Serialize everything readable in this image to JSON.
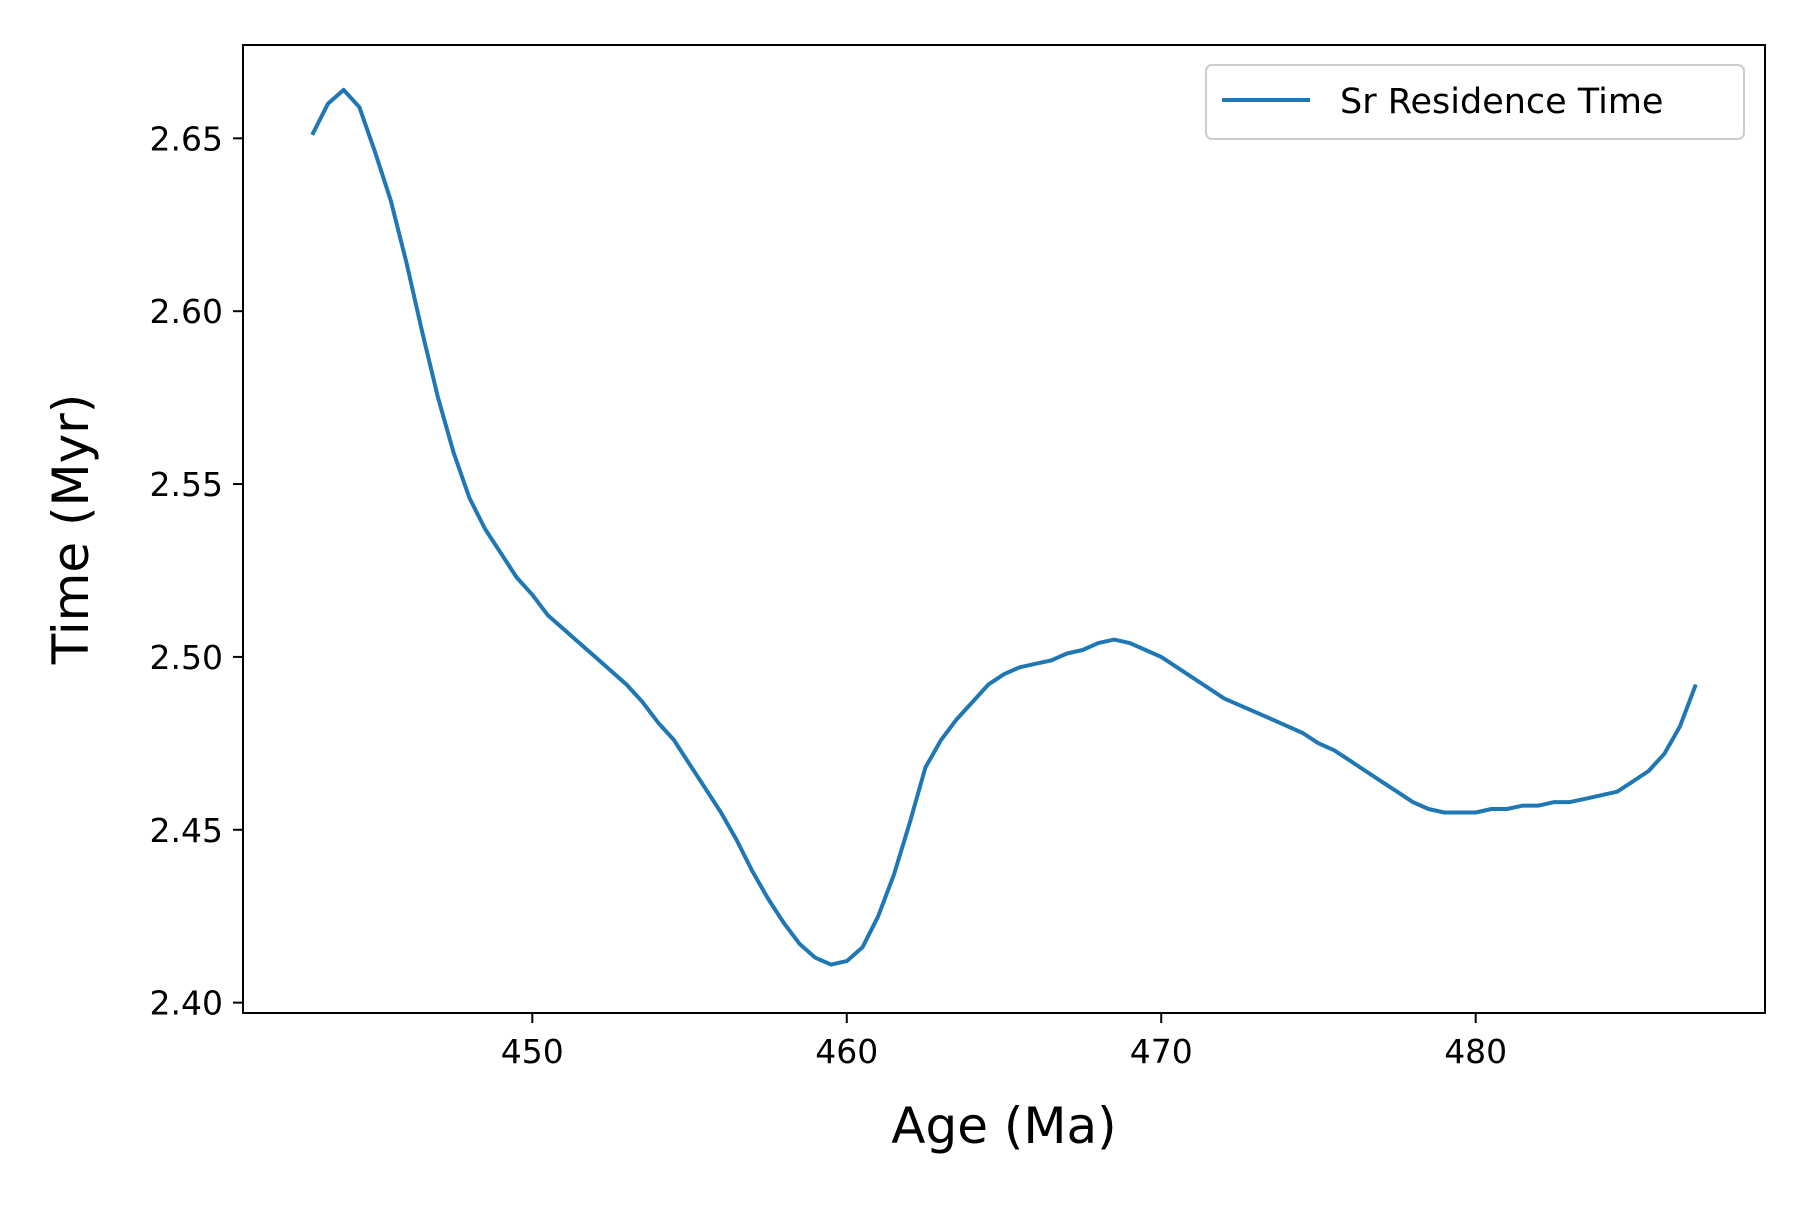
{
  "chart_data": {
    "type": "line",
    "title": "",
    "xlabel": "Age (Ma)",
    "ylabel": "Time (Myr)",
    "xlim": [
      440.8,
      489.2
    ],
    "ylim": [
      2.397,
      2.677
    ],
    "xticks": [
      450,
      460,
      470,
      480
    ],
    "xtick_labels": [
      "450",
      "460",
      "470",
      "480"
    ],
    "yticks": [
      2.4,
      2.45,
      2.5,
      2.55,
      2.6,
      2.65
    ],
    "ytick_labels": [
      "2.40",
      "2.45",
      "2.50",
      "2.55",
      "2.60",
      "2.65"
    ],
    "grid": false,
    "legend": {
      "position": "top-right"
    },
    "series": [
      {
        "name": "Sr Residence Time",
        "color": "#1f77b4",
        "x": [
          443.0,
          443.5,
          444.0,
          444.5,
          445.0,
          445.5,
          446.0,
          446.5,
          447.0,
          447.5,
          448.0,
          448.5,
          449.0,
          449.5,
          450.0,
          450.5,
          451.0,
          451.5,
          452.0,
          452.5,
          453.0,
          453.5,
          454.0,
          454.5,
          455.0,
          455.5,
          456.0,
          456.5,
          457.0,
          457.5,
          458.0,
          458.5,
          459.0,
          459.5,
          460.0,
          460.5,
          461.0,
          461.5,
          462.0,
          462.5,
          463.0,
          463.5,
          464.0,
          464.5,
          465.0,
          465.5,
          466.0,
          466.5,
          467.0,
          467.5,
          468.0,
          468.5,
          469.0,
          469.5,
          470.0,
          470.5,
          471.0,
          471.5,
          472.0,
          472.5,
          473.0,
          473.5,
          474.0,
          474.5,
          475.0,
          475.5,
          476.0,
          476.5,
          477.0,
          477.5,
          478.0,
          478.5,
          479.0,
          479.5,
          480.0,
          480.5,
          481.0,
          481.5,
          482.0,
          482.5,
          483.0,
          483.5,
          484.0,
          484.5,
          485.0,
          485.5,
          486.0,
          486.5,
          487.0
        ],
        "y": [
          2.651,
          2.66,
          2.664,
          2.659,
          2.646,
          2.632,
          2.614,
          2.594,
          2.575,
          2.559,
          2.546,
          2.537,
          2.53,
          2.523,
          2.518,
          2.512,
          2.508,
          2.504,
          2.5,
          2.496,
          2.492,
          2.487,
          2.481,
          2.476,
          2.469,
          2.462,
          2.455,
          2.447,
          2.438,
          2.43,
          2.423,
          2.417,
          2.413,
          2.411,
          2.412,
          2.416,
          2.425,
          2.437,
          2.452,
          2.468,
          2.476,
          2.482,
          2.487,
          2.492,
          2.495,
          2.497,
          2.498,
          2.499,
          2.501,
          2.502,
          2.504,
          2.505,
          2.504,
          2.502,
          2.5,
          2.497,
          2.494,
          2.491,
          2.488,
          2.486,
          2.484,
          2.482,
          2.48,
          2.478,
          2.475,
          2.473,
          2.47,
          2.467,
          2.464,
          2.461,
          2.458,
          2.456,
          2.455,
          2.455,
          2.455,
          2.456,
          2.456,
          2.457,
          2.457,
          2.458,
          2.458,
          2.459,
          2.46,
          2.461,
          2.464,
          2.467,
          2.472,
          2.48,
          2.492
        ]
      }
    ]
  }
}
